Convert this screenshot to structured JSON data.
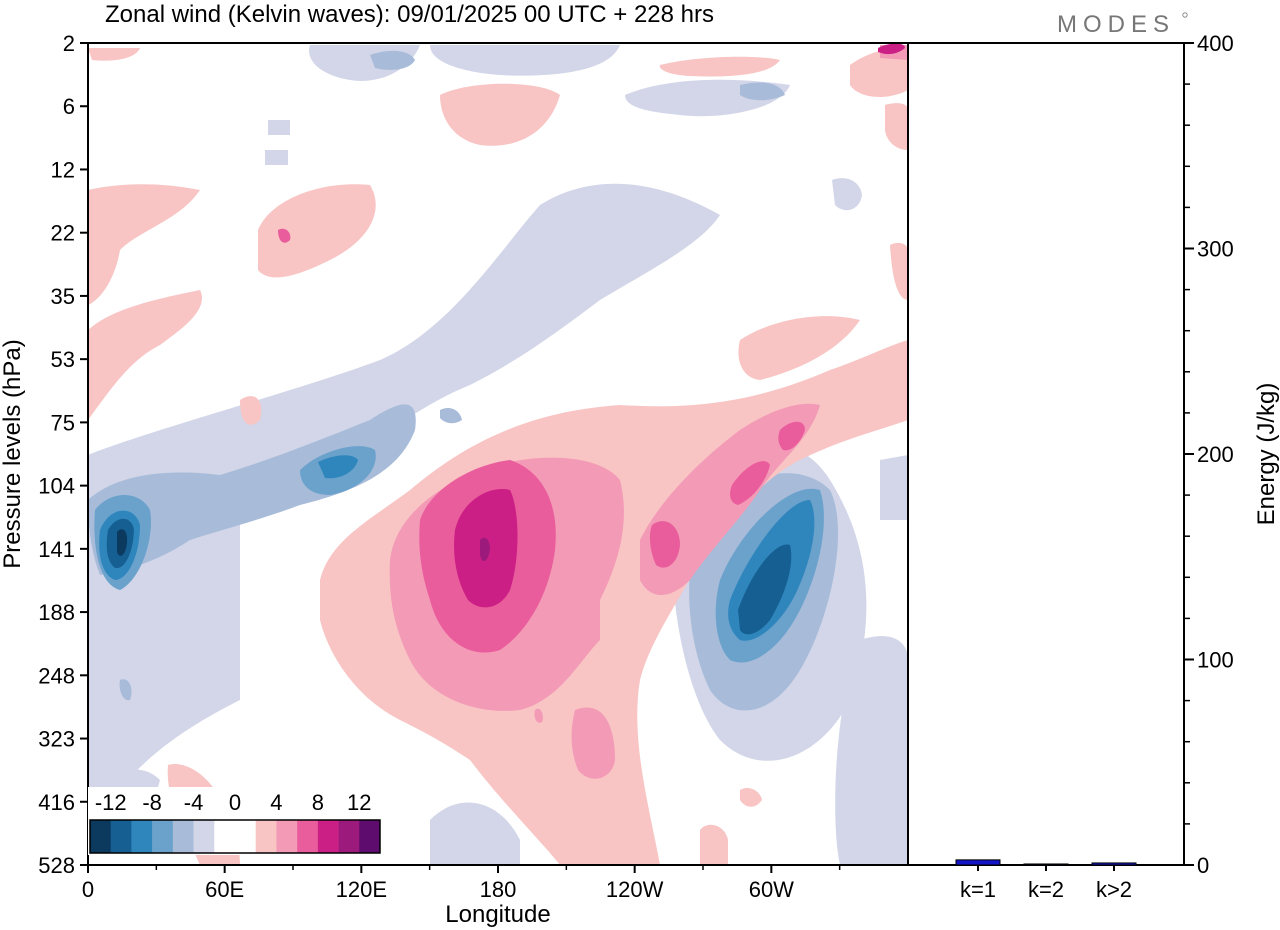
{
  "logo": "MODES",
  "chart_data": [
    {
      "type": "heatmap",
      "title": "Zonal wind (Kelvin waves):  09/01/2025  00 UTC  + 228 hrs",
      "xlabel": "Longitude",
      "ylabel": "Pressure levels (hPa)",
      "x_ticks": [
        "0",
        "60E",
        "120E",
        "180",
        "120W",
        "60W"
      ],
      "x_tick_degrees": [
        0,
        60,
        120,
        180,
        240,
        300
      ],
      "xlim": [
        0,
        360
      ],
      "y_ticks": [
        "2",
        "6",
        "12",
        "22",
        "35",
        "53",
        "75",
        "104",
        "141",
        "188",
        "248",
        "323",
        "416",
        "528"
      ],
      "colorbar": {
        "labels": [
          "-12",
          "-8",
          "-4",
          "0",
          "4",
          "8",
          "12"
        ],
        "colors": [
          "#0b3a5e",
          "#165f93",
          "#2f86bd",
          "#6ba2cc",
          "#a8bcda",
          "#d2d6e8",
          "#ffffff",
          "#ffffff",
          "#f8c5c4",
          "#f39ab6",
          "#ea5d9c",
          "#cc1f86",
          "#9d1a7d",
          "#5e0c6e"
        ]
      },
      "features": [
        {
          "sign": "negative",
          "lon": 15,
          "level": "141",
          "peak": -14
        },
        {
          "sign": "negative",
          "lon": 110,
          "level": "104",
          "peak": -9
        },
        {
          "sign": "negative",
          "lon": 293,
          "level": "141",
          "peak": -14
        },
        {
          "sign": "positive",
          "lon": 173,
          "level": "141",
          "peak": 13
        },
        {
          "sign": "positive",
          "lon": 250,
          "level": "141",
          "peak": 8
        },
        {
          "sign": "positive",
          "lon": 297,
          "level": "75",
          "peak": 8
        }
      ]
    },
    {
      "type": "bar",
      "ylabel": "Energy (J/kg)",
      "ylim": [
        0,
        400
      ],
      "y_ticks": [
        "0",
        "100",
        "200",
        "300",
        "400"
      ],
      "categories": [
        "k=1",
        "k=2",
        "k>2"
      ],
      "values": [
        2.5,
        0.5,
        1
      ],
      "bar_color": "#1515c8"
    }
  ]
}
